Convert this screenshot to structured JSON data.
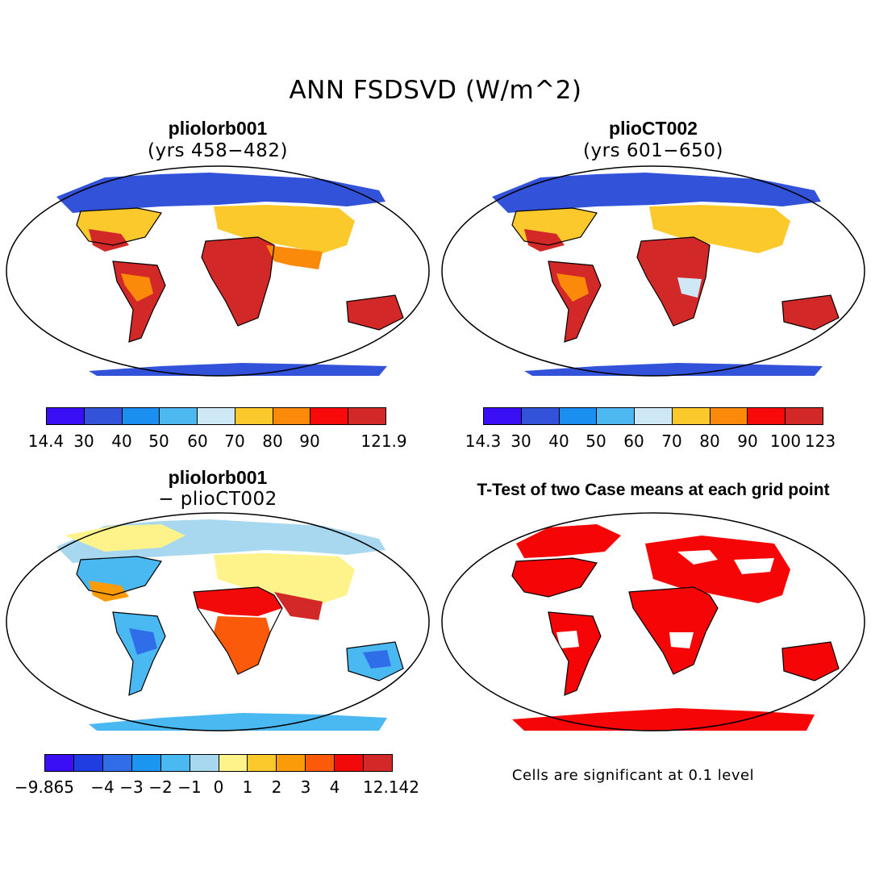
{
  "title": "ANN FSDSVD (W/m^2)",
  "panels": [
    {
      "id": "tl",
      "title": "pliolorb001",
      "subtitle": "(yrs 458−482)",
      "colorbar": {
        "colors": [
          "#3a0ff5",
          "#3152d9",
          "#1b8ff0",
          "#4db8f0",
          "#cfe8f5",
          "#fcc92d",
          "#fb8a0a",
          "#f90a0a",
          "#d32828"
        ],
        "ticks": [
          "14.4",
          "30",
          "40",
          "50",
          "60",
          "70",
          "80",
          "90",
          "",
          "121.9"
        ]
      }
    },
    {
      "id": "tr",
      "title": "plioCT002",
      "subtitle": "(yrs 601−650)",
      "colorbar": {
        "colors": [
          "#3a0ff5",
          "#3152d9",
          "#1b8ff0",
          "#4db8f0",
          "#cfe8f5",
          "#fcc92d",
          "#fb8a0a",
          "#f90a0a",
          "#d32828"
        ],
        "ticks": [
          "14.3",
          "30",
          "40",
          "50",
          "60",
          "70",
          "80",
          "90",
          "100",
          "123"
        ]
      }
    },
    {
      "id": "bl",
      "title": "pliolorb001",
      "subtitle": "− plioCT002",
      "colorbar": {
        "colors": [
          "#3a0ff5",
          "#1f3de0",
          "#2f6ee8",
          "#1b95f0",
          "#4ab9f2",
          "#a8d8f0",
          "#fdf38a",
          "#fcc92d",
          "#fb9b0a",
          "#fb5a0a",
          "#f20a0a",
          "#d32828"
        ],
        "ticks": [
          "−9.865",
          "−4",
          "−3",
          "−2",
          "−1",
          "0",
          "1",
          "2",
          "3",
          "4",
          "",
          "12.142"
        ]
      }
    },
    {
      "id": "br",
      "title": "T-Test of two Case means at each grid point",
      "note": "Cells are significant at 0.1 level",
      "sig_color": "#f50505"
    }
  ],
  "legend_colors": {
    "high": "#d32828",
    "mid": "#fb8a0a",
    "warm": "#fcc92d",
    "cool": "#4db8f0",
    "cold": "#3152d9",
    "land_ice": "#1b8ff0"
  }
}
